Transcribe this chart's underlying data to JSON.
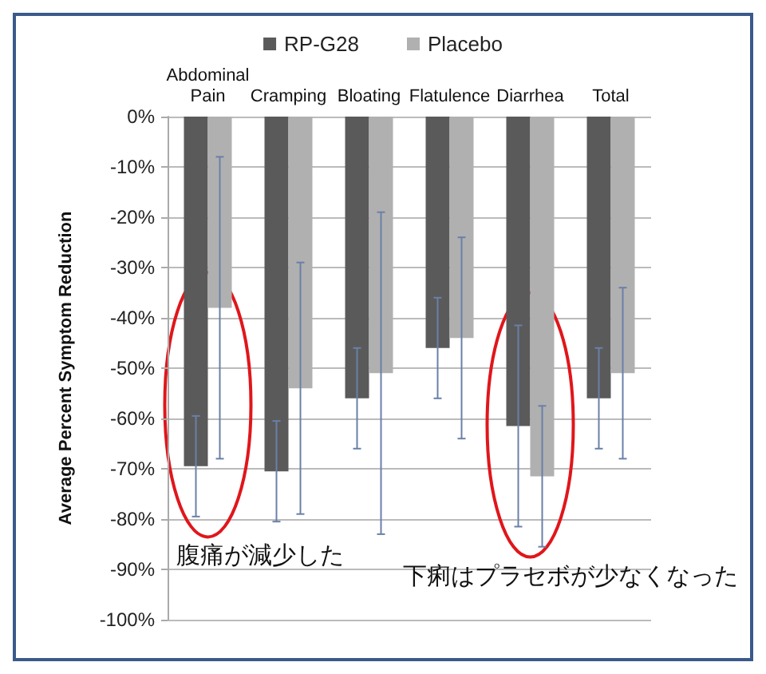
{
  "chart_data": {
    "type": "bar",
    "ylabel": "Average Percent Symptom Reduction",
    "categories": [
      "Abdominal\nPain",
      "Cramping",
      "Bloating",
      "Flatulence",
      "Diarrhea",
      "Total"
    ],
    "series": [
      {
        "name": "RP-G28",
        "color": "#5a5a5a",
        "values": [
          -69.5,
          -70.5,
          -56,
          -46,
          -61.5,
          -56
        ],
        "errors": [
          10,
          10,
          10,
          10,
          20,
          10
        ]
      },
      {
        "name": "Placebo",
        "color": "#b0b0b0",
        "values": [
          -38,
          -54,
          -51,
          -44,
          -71.5,
          -51
        ],
        "errors": [
          30,
          25,
          32,
          20,
          14,
          17
        ]
      }
    ],
    "ylim": [
      -100,
      0
    ],
    "yticks": [
      {
        "value": -100,
        "label": "-100%"
      },
      {
        "value": -90,
        "label": "-90%"
      },
      {
        "value": -80,
        "label": "-80%"
      },
      {
        "value": -70,
        "label": "-70%"
      },
      {
        "value": -60,
        "label": "-60%"
      },
      {
        "value": -50,
        "label": "-50%"
      },
      {
        "value": -40,
        "label": "-40%"
      },
      {
        "value": -30,
        "label": "-30%"
      },
      {
        "value": -20,
        "label": "-20%"
      },
      {
        "value": -10,
        "label": "-10%"
      },
      {
        "value": 0,
        "label": "0%"
      }
    ],
    "grid": "y",
    "legend": "top",
    "annotations": [
      "腹痛が減少した",
      "下痢はプラセボが少なくなった"
    ]
  }
}
